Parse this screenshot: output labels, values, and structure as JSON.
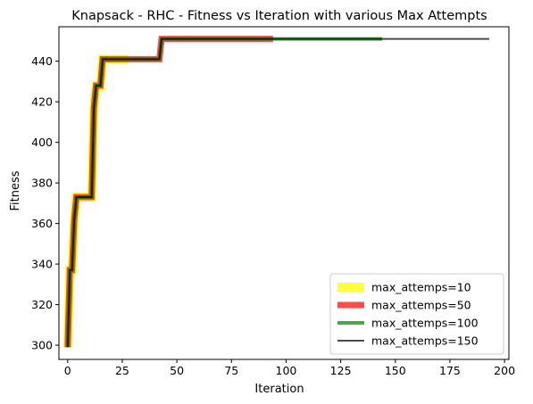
{
  "chart_data": {
    "type": "line",
    "title": "Knapsack - RHC - Fitness vs Iteration with various Max Attempts",
    "xlabel": "Iteration",
    "ylabel": "Fitness",
    "xlim": [
      -4,
      202
    ],
    "ylim": [
      293,
      457
    ],
    "xticks": [
      0,
      25,
      50,
      75,
      100,
      125,
      150,
      175,
      200
    ],
    "yticks": [
      300,
      320,
      340,
      360,
      380,
      400,
      420,
      440
    ],
    "grid": false,
    "legend_position": "lower-right",
    "series": [
      {
        "name": "max_attemps=10",
        "color": "#ffff00",
        "alpha": 0.75,
        "line_width": 10,
        "points": [
          [
            0,
            299
          ],
          [
            1,
            337
          ],
          [
            2,
            337
          ],
          [
            3,
            362
          ],
          [
            4,
            373
          ],
          [
            11,
            373
          ],
          [
            12,
            417
          ],
          [
            13,
            428
          ],
          [
            15,
            428
          ],
          [
            16,
            441
          ],
          [
            28,
            441
          ]
        ]
      },
      {
        "name": "max_attemps=50",
        "color": "#ff0000",
        "alpha": 0.7,
        "line_width": 7,
        "points": [
          [
            0,
            299
          ],
          [
            1,
            337
          ],
          [
            2,
            337
          ],
          [
            3,
            362
          ],
          [
            4,
            373
          ],
          [
            11,
            373
          ],
          [
            12,
            417
          ],
          [
            13,
            428
          ],
          [
            15,
            428
          ],
          [
            16,
            441
          ],
          [
            42,
            441
          ],
          [
            43,
            451
          ],
          [
            94,
            451
          ]
        ]
      },
      {
        "name": "max_attemps=100",
        "color": "#008000",
        "alpha": 0.7,
        "line_width": 4,
        "points": [
          [
            0,
            299
          ],
          [
            1,
            337
          ],
          [
            2,
            337
          ],
          [
            3,
            362
          ],
          [
            4,
            373
          ],
          [
            11,
            373
          ],
          [
            12,
            417
          ],
          [
            13,
            428
          ],
          [
            15,
            428
          ],
          [
            16,
            441
          ],
          [
            42,
            441
          ],
          [
            43,
            451
          ],
          [
            144,
            451
          ]
        ]
      },
      {
        "name": "max_attemps=150",
        "color": "#000000",
        "alpha": 0.7,
        "line_width": 2,
        "points": [
          [
            0,
            299
          ],
          [
            1,
            337
          ],
          [
            2,
            337
          ],
          [
            3,
            362
          ],
          [
            4,
            373
          ],
          [
            11,
            373
          ],
          [
            12,
            417
          ],
          [
            13,
            428
          ],
          [
            15,
            428
          ],
          [
            16,
            441
          ],
          [
            42,
            441
          ],
          [
            43,
            451
          ],
          [
            193,
            451
          ]
        ]
      }
    ]
  }
}
